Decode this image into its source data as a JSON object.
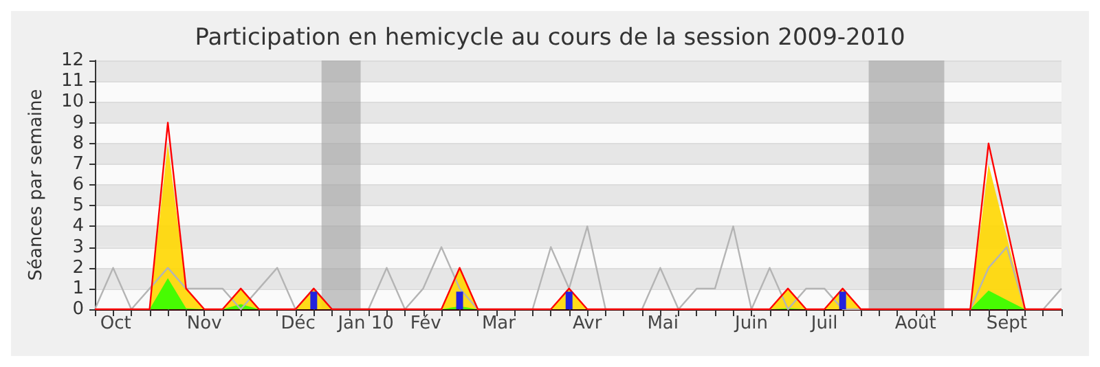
{
  "chart_data": {
    "type": "area",
    "title": "Participation en hemicycle au cours de la session 2009-2010",
    "ylabel": "Séances par semaine",
    "x": [
      "2009-09-28",
      "2009-10-05",
      "2009-10-12",
      "2009-10-19",
      "2009-10-26",
      "2009-11-02",
      "2009-11-09",
      "2009-11-16",
      "2009-11-23",
      "2009-11-30",
      "2009-12-07",
      "2009-12-14",
      "2009-12-21",
      "2009-12-28",
      "2010-01-04",
      "2010-01-11",
      "2010-01-18",
      "2010-01-25",
      "2010-02-01",
      "2010-02-08",
      "2010-02-15",
      "2010-02-22",
      "2010-03-01",
      "2010-03-08",
      "2010-03-15",
      "2010-03-22",
      "2010-03-29",
      "2010-04-05",
      "2010-04-12",
      "2010-04-19",
      "2010-04-26",
      "2010-05-03",
      "2010-05-10",
      "2010-05-17",
      "2010-05-24",
      "2010-05-31",
      "2010-06-07",
      "2010-06-14",
      "2010-06-21",
      "2010-06-28",
      "2010-07-05",
      "2010-07-12",
      "2010-07-19",
      "2010-07-26",
      "2010-08-02",
      "2010-08-09",
      "2010-08-16",
      "2010-08-23",
      "2010-08-30",
      "2010-09-06",
      "2010-09-13",
      "2010-09-20",
      "2010-09-27",
      "2010-10-04"
    ],
    "series": [
      {
        "type": "line",
        "color": "#b4b4b4",
        "values": [
          0,
          2,
          0,
          1,
          2,
          1,
          1,
          1,
          0,
          1,
          2,
          0,
          1,
          0,
          0,
          0,
          2,
          0,
          1,
          3,
          1,
          0,
          0,
          0,
          0,
          3,
          1,
          4,
          0,
          0,
          0,
          2,
          0,
          1,
          1,
          4,
          0,
          2,
          0,
          1,
          1,
          0,
          0,
          0,
          0,
          0,
          0,
          0,
          0,
          2,
          3,
          0,
          0,
          1
        ]
      },
      {
        "color": "#ffd700",
        "values": [
          0,
          0,
          0,
          0,
          8,
          1,
          0,
          0,
          1,
          0,
          0,
          0,
          1,
          0,
          0,
          0,
          0,
          0,
          0,
          0,
          2,
          0,
          0,
          0,
          0,
          0,
          1,
          0,
          0,
          0,
          0,
          0,
          0,
          0,
          0,
          0,
          0,
          0,
          1,
          0,
          0,
          1,
          0,
          0,
          0,
          0,
          0,
          0,
          0,
          7,
          3.5,
          0,
          0,
          0
        ]
      },
      {
        "type": "area",
        "color": "#33ff00",
        "values": [
          0,
          0,
          0,
          0,
          1.5,
          0.05,
          0,
          0,
          0.25,
          0,
          0,
          0,
          0,
          0,
          0,
          0,
          0,
          0,
          0,
          0,
          0.15,
          0,
          0,
          0,
          0,
          0,
          0,
          0,
          0,
          0,
          0,
          0,
          0,
          0,
          0,
          0,
          0,
          0,
          0.05,
          0,
          0,
          0,
          0,
          0,
          0,
          0,
          0,
          0,
          0,
          0.9,
          0.45,
          0,
          0,
          0
        ]
      },
      {
        "type": "line",
        "color": "#ff0000",
        "values": [
          0,
          0,
          0,
          0,
          9,
          1,
          0,
          0,
          1,
          0,
          0,
          0,
          1,
          0,
          0,
          0,
          0,
          0,
          0,
          0,
          2,
          0,
          0,
          0,
          0,
          0,
          1,
          0,
          0,
          0,
          0,
          0,
          0,
          0,
          0,
          0,
          0,
          0,
          1,
          0,
          0,
          1,
          0,
          0,
          0,
          0,
          0,
          0,
          0,
          8,
          4,
          0,
          0,
          0
        ]
      },
      {
        "type": "bar",
        "color": "#2222dd",
        "values": [
          null,
          null,
          null,
          null,
          null,
          null,
          null,
          null,
          null,
          null,
          null,
          null,
          0.85,
          null,
          null,
          null,
          null,
          null,
          null,
          null,
          0.85,
          null,
          null,
          null,
          null,
          null,
          0.85,
          null,
          null,
          null,
          null,
          null,
          null,
          null,
          null,
          null,
          null,
          null,
          null,
          null,
          null,
          0.85,
          null,
          null,
          null,
          null,
          null,
          null,
          null,
          null,
          null,
          null,
          null,
          null
        ]
      }
    ],
    "xlim": [
      "2009-09-28",
      "2010-10-04"
    ],
    "xticks": [
      {
        "value": "2009-09-28",
        "label": null
      },
      {
        "value": "2009-10-05",
        "label": null
      },
      {
        "value": "2009-10-12",
        "label": null
      },
      {
        "value": "2009-10-19",
        "label": null
      },
      {
        "value": "2009-10-26",
        "label": null
      },
      {
        "value": "2009-11-02",
        "label": null
      },
      {
        "value": "2009-11-09",
        "label": null
      },
      {
        "value": "2009-11-16",
        "label": null
      },
      {
        "value": "2009-11-23",
        "label": null
      },
      {
        "value": "2009-11-30",
        "label": null
      },
      {
        "value": "2009-12-07",
        "label": null
      },
      {
        "value": "2009-12-14",
        "label": null
      },
      {
        "value": "2009-12-21",
        "label": null
      },
      {
        "value": "2009-12-28",
        "label": null
      },
      {
        "value": "2010-01-04",
        "label": null
      },
      {
        "value": "2010-01-11",
        "label": null
      },
      {
        "value": "2010-01-18",
        "label": null
      },
      {
        "value": "2010-01-25",
        "label": null
      },
      {
        "value": "2010-02-01",
        "label": null
      },
      {
        "value": "2010-02-08",
        "label": null
      },
      {
        "value": "2010-02-15",
        "label": null
      },
      {
        "value": "2010-02-22",
        "label": null
      },
      {
        "value": "2010-03-01",
        "label": null
      },
      {
        "value": "2010-03-08",
        "label": null
      },
      {
        "value": "2010-03-15",
        "label": null
      },
      {
        "value": "2010-03-22",
        "label": null
      },
      {
        "value": "2010-03-29",
        "label": null
      },
      {
        "value": "2010-04-05",
        "label": null
      },
      {
        "value": "2010-04-12",
        "label": null
      },
      {
        "value": "2010-04-19",
        "label": null
      },
      {
        "value": "2010-04-26",
        "label": null
      },
      {
        "value": "2010-05-03",
        "label": null
      },
      {
        "value": "2010-05-10",
        "label": null
      },
      {
        "value": "2010-05-17",
        "label": null
      },
      {
        "value": "2010-05-24",
        "label": null
      },
      {
        "value": "2010-05-31",
        "label": null
      },
      {
        "value": "2010-06-07",
        "label": null
      },
      {
        "value": "2010-06-14",
        "label": null
      },
      {
        "value": "2010-06-21",
        "label": null
      },
      {
        "value": "2010-06-28",
        "label": null
      },
      {
        "value": "2010-07-05",
        "label": null
      },
      {
        "value": "2010-07-12",
        "label": null
      },
      {
        "value": "2010-07-19",
        "label": null
      },
      {
        "value": "2010-07-26",
        "label": null
      },
      {
        "value": "2010-08-02",
        "label": null
      },
      {
        "value": "2010-08-09",
        "label": null
      },
      {
        "value": "2010-08-16",
        "label": null
      },
      {
        "value": "2010-08-23",
        "label": null
      },
      {
        "value": "2010-08-30",
        "label": null
      },
      {
        "value": "2010-09-06",
        "label": null
      },
      {
        "value": "2010-09-13",
        "label": null
      },
      {
        "value": "2010-09-20",
        "label": null
      },
      {
        "value": "2010-09-27",
        "label": null
      },
      {
        "value": "2010-10-04",
        "label": null
      },
      {
        "value": "2009-10-06",
        "label": "Oct"
      },
      {
        "value": "2009-11-09",
        "label": "Nov"
      },
      {
        "value": "2009-12-15",
        "label": "Déc"
      },
      {
        "value": "2010-01-10",
        "label": "Jan 10"
      },
      {
        "value": "2010-02-02",
        "label": "Fév"
      },
      {
        "value": "2010-03-02",
        "label": "Mar"
      },
      {
        "value": "2010-04-05",
        "label": "Avr"
      },
      {
        "value": "2010-05-04",
        "label": "Mai"
      },
      {
        "value": "2010-06-07",
        "label": "Juin"
      },
      {
        "value": "2010-07-05",
        "label": "Juil"
      },
      {
        "value": "2010-08-09",
        "label": "Août"
      },
      {
        "value": "2010-09-13",
        "label": "Sept"
      }
    ],
    "ylim": [
      0,
      12
    ],
    "yticks": [
      0,
      1,
      2,
      3,
      4,
      5,
      6,
      7,
      8,
      9,
      10,
      11,
      12
    ],
    "bands": [
      {
        "axis": "x",
        "from": "2009-12-24",
        "to": "2010-01-08",
        "color": "#a0a0a0"
      },
      {
        "axis": "x",
        "from": "2010-07-22",
        "to": "2010-08-20",
        "color": "#a0a0a0"
      }
    ],
    "grid": true,
    "marker": "none"
  }
}
